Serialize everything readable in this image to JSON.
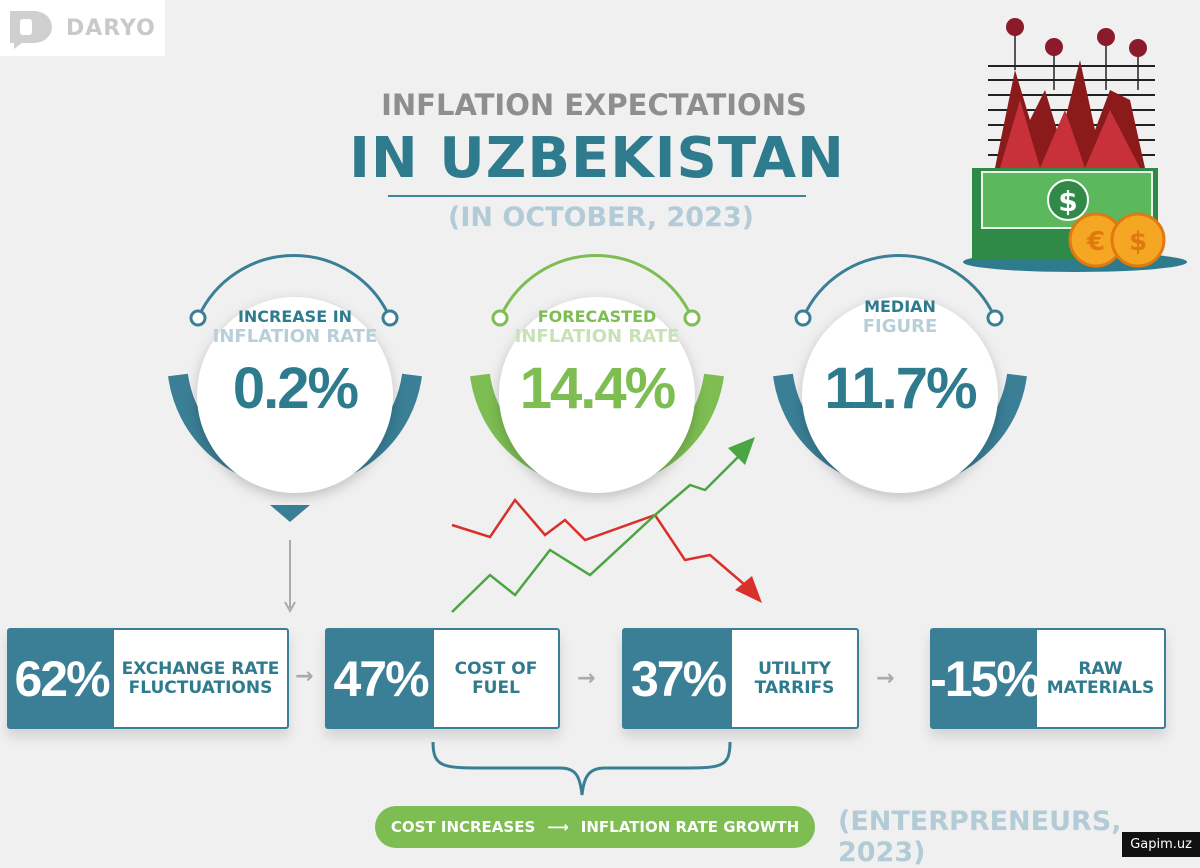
{
  "logo": {
    "text": "DARYO"
  },
  "title": {
    "line1": "INFLATION EXPECTATIONS",
    "line2": "IN UZBEKISTAN",
    "subtitle": "(IN OCTOBER, 2023)"
  },
  "circles": [
    {
      "label1": "INCREASE IN",
      "label2": "INFLATION RATE",
      "value": "0.2%",
      "color": "#3a7f96"
    },
    {
      "label1": "FORECASTED",
      "label2": "INFLATION RATE",
      "value": "14.4%",
      "color": "#7dbd52"
    },
    {
      "label1": "MEDIAN",
      "label2": "FIGURE",
      "value": "11.7%",
      "color": "#3a7f96"
    }
  ],
  "factors": [
    {
      "pct": "62%",
      "label": "EXCHANGE RATE FLUCTUATIONS"
    },
    {
      "pct": "47%",
      "label": "COST OF FUEL"
    },
    {
      "pct": "37%",
      "label": "UTILITY TARRIFS"
    },
    {
      "pct": "-15%",
      "label": "RAW MATERIALS"
    }
  ],
  "pill": {
    "left": "COST INCREASES",
    "arrow": "⟶",
    "right": "INFLATION RATE GROWTH"
  },
  "source": "(ENTERPRENEURS, 2023)",
  "watermark": "Gapim.uz",
  "colors": {
    "teal": "#3a7f96",
    "green": "#7dbd52",
    "red": "#d8312c"
  }
}
